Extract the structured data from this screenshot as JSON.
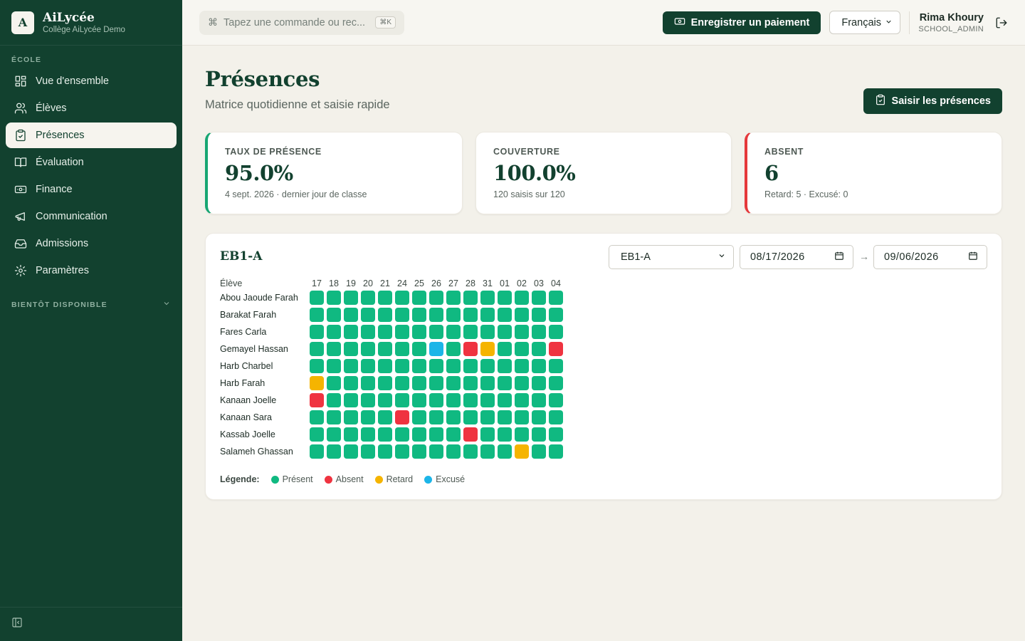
{
  "brand": {
    "logo_letter": "A",
    "name": "AiLycée",
    "subtitle": "Collège AiLycée Demo"
  },
  "sidebar": {
    "section_label": "ÉCOLE",
    "items": [
      {
        "label": "Vue d'ensemble",
        "icon": "dashboard-icon"
      },
      {
        "label": "Élèves",
        "icon": "users-icon"
      },
      {
        "label": "Présences",
        "icon": "clipboard-check-icon",
        "active": true
      },
      {
        "label": "Évaluation",
        "icon": "book-icon"
      },
      {
        "label": "Finance",
        "icon": "banknote-icon"
      },
      {
        "label": "Communication",
        "icon": "megaphone-icon"
      },
      {
        "label": "Admissions",
        "icon": "inbox-icon"
      },
      {
        "label": "Paramètres",
        "icon": "gear-icon"
      }
    ],
    "soon_label": "BIENTÔT DISPONIBLE"
  },
  "topbar": {
    "command_placeholder": "Tapez une commande ou rec...",
    "command_shortcut": "⌘K",
    "payment_button": "Enregistrer un paiement",
    "language": "Français",
    "user_name": "Rima Khoury",
    "user_role": "SCHOOL_ADMIN"
  },
  "page": {
    "title": "Présences",
    "subtitle": "Matrice quotidienne et saisie rapide",
    "take_button": "Saisir les présences"
  },
  "stats": [
    {
      "label": "TAUX DE PRÉSENCE",
      "value": "95.0%",
      "foot": "4 sept. 2026 · dernier jour de classe"
    },
    {
      "label": "COUVERTURE",
      "value": "100.0%",
      "foot": "120 saisis sur 120"
    },
    {
      "label": "ABSENT",
      "value": "6",
      "foot": "Retard: 5 · Excusé: 0"
    }
  ],
  "matrix": {
    "class_title": "EB1-A",
    "class_select": "EB1-A",
    "date_from": "08/17/2026",
    "date_to": "09/06/2026",
    "arrow": "→",
    "student_header": "Élève",
    "days": [
      "17",
      "18",
      "19",
      "20",
      "21",
      "24",
      "25",
      "26",
      "27",
      "28",
      "31",
      "01",
      "02",
      "03",
      "04"
    ],
    "rows": [
      {
        "student": "Abou Jaoude Farah",
        "marks": [
          "P",
          "P",
          "P",
          "P",
          "P",
          "P",
          "P",
          "P",
          "P",
          "P",
          "P",
          "P",
          "P",
          "P",
          "P"
        ]
      },
      {
        "student": "Barakat Farah",
        "marks": [
          "P",
          "P",
          "P",
          "P",
          "P",
          "P",
          "P",
          "P",
          "P",
          "P",
          "P",
          "P",
          "P",
          "P",
          "P"
        ]
      },
      {
        "student": "Fares Carla",
        "marks": [
          "P",
          "P",
          "P",
          "P",
          "P",
          "P",
          "P",
          "P",
          "P",
          "P",
          "P",
          "P",
          "P",
          "P",
          "P"
        ]
      },
      {
        "student": "Gemayel Hassan",
        "marks": [
          "P",
          "P",
          "P",
          "P",
          "P",
          "P",
          "P",
          "E",
          "P",
          "A",
          "R",
          "P",
          "P",
          "P",
          "A"
        ]
      },
      {
        "student": "Harb Charbel",
        "marks": [
          "P",
          "P",
          "P",
          "P",
          "P",
          "P",
          "P",
          "P",
          "P",
          "P",
          "P",
          "P",
          "P",
          "P",
          "P"
        ]
      },
      {
        "student": "Harb Farah",
        "marks": [
          "R",
          "P",
          "P",
          "P",
          "P",
          "P",
          "P",
          "P",
          "P",
          "P",
          "P",
          "P",
          "P",
          "P",
          "P"
        ]
      },
      {
        "student": "Kanaan Joelle",
        "marks": [
          "A",
          "P",
          "P",
          "P",
          "P",
          "P",
          "P",
          "P",
          "P",
          "P",
          "P",
          "P",
          "P",
          "P",
          "P"
        ]
      },
      {
        "student": "Kanaan Sara",
        "marks": [
          "P",
          "P",
          "P",
          "P",
          "P",
          "A",
          "P",
          "P",
          "P",
          "P",
          "P",
          "P",
          "P",
          "P",
          "P"
        ]
      },
      {
        "student": "Kassab Joelle",
        "marks": [
          "P",
          "P",
          "P",
          "P",
          "P",
          "P",
          "P",
          "P",
          "P",
          "A",
          "P",
          "P",
          "P",
          "P",
          "P"
        ]
      },
      {
        "student": "Salameh Ghassan",
        "marks": [
          "P",
          "P",
          "P",
          "P",
          "P",
          "P",
          "P",
          "P",
          "P",
          "P",
          "P",
          "P",
          "R",
          "P",
          "P"
        ]
      }
    ],
    "legend_title": "Légende:",
    "legend": [
      {
        "code": "P",
        "label": "Présent",
        "color": "#10b981"
      },
      {
        "code": "A",
        "label": "Absent",
        "color": "#ef3340"
      },
      {
        "code": "R",
        "label": "Retard",
        "color": "#f5b400"
      },
      {
        "code": "E",
        "label": "Excusé",
        "color": "#1cb5e8"
      }
    ]
  },
  "colors": {
    "brand": "#12412f",
    "background": "#f3f1ea",
    "accent_green": "#17a673",
    "accent_red": "#e5383b"
  }
}
